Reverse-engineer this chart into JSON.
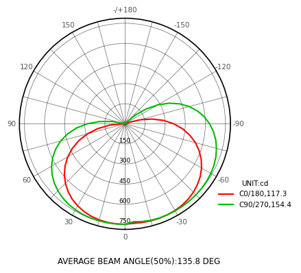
{
  "subtitle": "AVERAGE BEAM ANGLE(50%):135.8 DEG",
  "radial_max": 750,
  "radial_ticks": [
    150,
    300,
    450,
    600,
    750
  ],
  "unit_label": "UNIT:cd",
  "legend": [
    {
      "label": "C0/180,117.3",
      "color": "#ff0000"
    },
    {
      "label": "C90/270,154.4",
      "color": "#00bb00"
    }
  ],
  "bg_color": "#ffffff",
  "grid_color": "#000000",
  "label_color": "#555555",
  "c0_180_angles": [
    0,
    5,
    10,
    15,
    20,
    25,
    30,
    35,
    40,
    45,
    50,
    55,
    60,
    65,
    70,
    75,
    80,
    85,
    90,
    95,
    100,
    105,
    110,
    115,
    120,
    125,
    130,
    135,
    140,
    145,
    150,
    155,
    160,
    165,
    170,
    175,
    180,
    185,
    190,
    195,
    200,
    205,
    210,
    215,
    220,
    225,
    230,
    235,
    240,
    245,
    250,
    255,
    260,
    265,
    270,
    275,
    280,
    285,
    290,
    295,
    300,
    305,
    310,
    315,
    320,
    325,
    330,
    335,
    340,
    345,
    350,
    355,
    360
  ],
  "c0_180_values": [
    750,
    749,
    747,
    742,
    734,
    722,
    706,
    686,
    660,
    628,
    590,
    545,
    492,
    433,
    365,
    290,
    205,
    115,
    25,
    0,
    0,
    0,
    0,
    0,
    0,
    0,
    0,
    0,
    0,
    0,
    0,
    0,
    0,
    0,
    0,
    0,
    0,
    0,
    0,
    0,
    0,
    0,
    0,
    0,
    0,
    0,
    0,
    0,
    0,
    0,
    25,
    115,
    205,
    290,
    365,
    433,
    492,
    545,
    590,
    628,
    660,
    686,
    706,
    722,
    734,
    742,
    747,
    749,
    750,
    749,
    747,
    742,
    750
  ],
  "c90_270_angles": [
    0,
    5,
    10,
    15,
    20,
    25,
    30,
    35,
    40,
    45,
    50,
    55,
    60,
    65,
    70,
    75,
    80,
    85,
    90,
    95,
    100,
    105,
    110,
    115,
    120,
    125,
    130,
    135,
    140,
    145,
    150,
    155,
    160,
    165,
    170,
    175,
    180,
    185,
    190,
    195,
    200,
    205,
    210,
    215,
    220,
    225,
    230,
    235,
    240,
    245,
    250,
    255,
    260,
    265,
    270,
    275,
    280,
    285,
    290,
    295,
    300,
    305,
    310,
    315,
    320,
    325,
    330,
    335,
    340,
    345,
    350,
    355,
    360
  ],
  "c90_270_values": [
    750,
    750,
    750,
    749,
    748,
    745,
    740,
    733,
    722,
    707,
    688,
    663,
    632,
    595,
    550,
    497,
    435,
    364,
    282,
    192,
    100,
    20,
    0,
    0,
    0,
    0,
    0,
    0,
    0,
    0,
    0,
    0,
    0,
    0,
    0,
    0,
    0,
    0,
    0,
    0,
    0,
    0,
    0,
    0,
    0,
    20,
    100,
    192,
    282,
    364,
    435,
    497,
    550,
    595,
    632,
    663,
    688,
    707,
    722,
    733,
    740,
    745,
    748,
    749,
    750,
    750,
    750,
    749,
    748,
    745,
    740,
    733,
    750
  ]
}
